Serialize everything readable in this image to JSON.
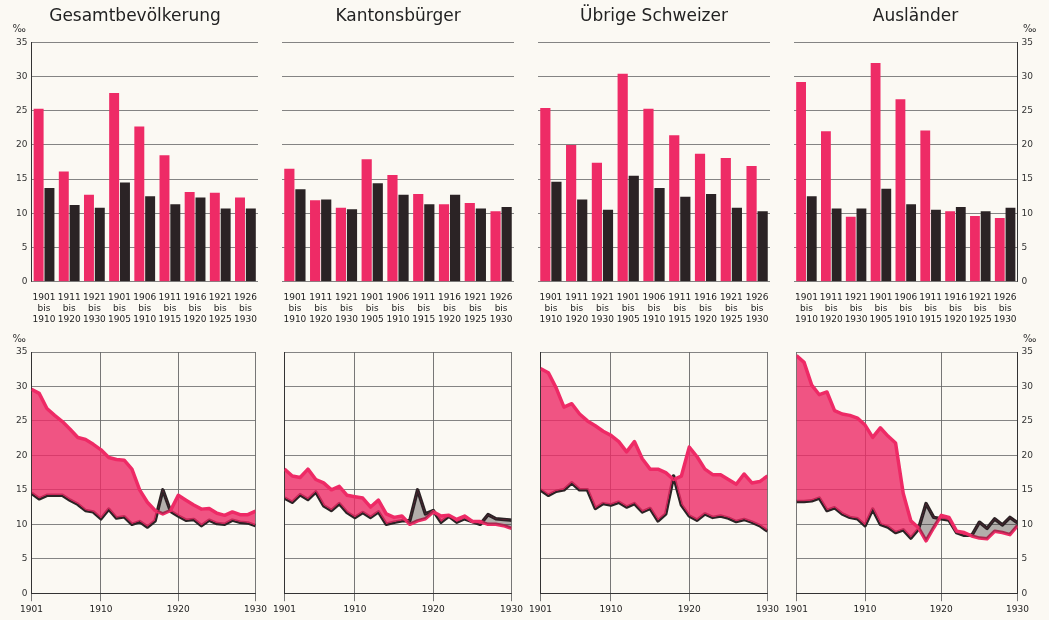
{
  "chart_data": [
    {
      "type": "bar",
      "title": "Gesamtbevölkerung",
      "ylabel": "‰",
      "categories": [
        "1901 bis 1910",
        "1911 bis 1920",
        "1921 bis 1930",
        "1901 bis 1905",
        "1906 bis 1910",
        "1911 bis 1915",
        "1916 bis 1920",
        "1921 bis 1925",
        "1926 bis 1930"
      ],
      "series": [
        {
          "color": "#ee2b66",
          "values": [
            25.3,
            16.1,
            12.7,
            27.6,
            22.7,
            18.5,
            13.1,
            13.0,
            12.3
          ]
        },
        {
          "color": "#2b2325",
          "values": [
            13.7,
            11.2,
            10.8,
            14.5,
            12.5,
            11.3,
            12.3,
            10.7,
            10.7
          ]
        }
      ],
      "ylim": [
        0,
        35
      ],
      "yticks": [
        0,
        5,
        10,
        15,
        20,
        25,
        30,
        35
      ],
      "grid": "y",
      "legend": false
    },
    {
      "type": "bar",
      "title": "Kantonsbürger",
      "categories": [
        "1901 bis 1910",
        "1911 bis 1920",
        "1921 bis 1930",
        "1901 bis 1905",
        "1906 bis 1910",
        "1911 bis 1915",
        "1916 bis 1920",
        "1921 bis 1925",
        "1926 bis 1930"
      ],
      "series": [
        {
          "color": "#ee2b66",
          "values": [
            16.5,
            11.9,
            10.8,
            17.9,
            15.6,
            12.8,
            11.3,
            11.5,
            10.3
          ]
        },
        {
          "color": "#2b2325",
          "values": [
            13.5,
            12.0,
            10.6,
            14.4,
            12.7,
            11.3,
            12.7,
            10.7,
            10.9
          ]
        }
      ],
      "ylim": [
        0,
        35
      ],
      "yticks": [
        0,
        5,
        10,
        15,
        20,
        25,
        30,
        35
      ],
      "grid": "y",
      "legend": false,
      "tick_labels": "x"
    },
    {
      "type": "bar",
      "title": "Übrige Schweizer",
      "categories": [
        "1901 bis 1910",
        "1911 bis 1920",
        "1921 bis 1930",
        "1901 bis 1905",
        "1906 bis 1910",
        "1911 bis 1915",
        "1916 bis 1920",
        "1921 bis 1925",
        "1926 bis 1930"
      ],
      "series": [
        {
          "color": "#ee2b66",
          "values": [
            25.4,
            20.0,
            17.4,
            30.4,
            25.3,
            21.4,
            18.7,
            18.1,
            16.9
          ]
        },
        {
          "color": "#2b2325",
          "values": [
            14.6,
            12.0,
            10.5,
            15.5,
            13.7,
            12.4,
            12.8,
            10.8,
            10.3
          ]
        }
      ],
      "ylim": [
        0,
        35
      ],
      "yticks": [
        0,
        5,
        10,
        15,
        20,
        25,
        30,
        35
      ],
      "grid": "y",
      "legend": false,
      "tick_labels": "x"
    },
    {
      "type": "bar",
      "title": "Ausländer",
      "ylabel": "‰",
      "categories": [
        "1901 bis 1910",
        "1911 bis 1920",
        "1921 bis 1930",
        "1901 bis 1905",
        "1906 bis 1910",
        "1911 bis 1915",
        "1916 bis 1920",
        "1921 bis 1925",
        "1926 bis 1930"
      ],
      "series": [
        {
          "color": "#ee2b66",
          "values": [
            29.2,
            22.0,
            9.5,
            32.0,
            26.7,
            22.1,
            10.3,
            9.6,
            9.3
          ]
        },
        {
          "color": "#2b2325",
          "values": [
            12.5,
            10.7,
            10.7,
            13.6,
            11.3,
            10.5,
            10.9,
            10.3,
            10.8
          ]
        }
      ],
      "ylim": [
        0,
        35
      ],
      "yticks": [
        0,
        5,
        10,
        15,
        20,
        25,
        30,
        35
      ],
      "grid": "y",
      "legend": false
    },
    {
      "type": "line",
      "ylabel": "‰",
      "x": [
        1901,
        1902,
        1903,
        1904,
        1905,
        1906,
        1907,
        1908,
        1909,
        1910,
        1911,
        1912,
        1913,
        1914,
        1915,
        1916,
        1917,
        1918,
        1919,
        1920,
        1921,
        1922,
        1923,
        1924,
        1925,
        1926,
        1927,
        1928,
        1929,
        1930
      ],
      "series": [
        {
          "color": "#ee2b66",
          "values": [
            29.6,
            29.0,
            26.8,
            25.8,
            24.9,
            23.8,
            22.6,
            22.3,
            21.6,
            20.8,
            19.7,
            19.4,
            19.3,
            18.0,
            15.0,
            13.2,
            12.0,
            11.5,
            12.0,
            14.2,
            13.5,
            12.8,
            12.2,
            12.3,
            11.6,
            11.3,
            11.8,
            11.4,
            11.4,
            11.9
          ],
          "upper": [
            29.6,
            29.0,
            26.8,
            25.8,
            24.9,
            23.8,
            22.6,
            22.3,
            21.6,
            20.8,
            19.7,
            19.4,
            19.3,
            18.0,
            15.0,
            13.2,
            12.0,
            11.5,
            12.0,
            14.2,
            13.5,
            12.8,
            12.2,
            12.3,
            11.6,
            11.3,
            11.8,
            11.4,
            11.4,
            11.9
          ],
          "lower": [
            14.5,
            13.7,
            14.2,
            14.2,
            14.2,
            13.5,
            12.9,
            12.0,
            11.8,
            10.8,
            12.2,
            10.9,
            11.1,
            10.0,
            10.4,
            9.6,
            10.5,
            15.0,
            11.9,
            11.2,
            10.6,
            10.7,
            9.8,
            10.6,
            10.1,
            10.0,
            10.6,
            10.3,
            10.2,
            9.8
          ]
        },
        {
          "color": "#2b2325",
          "values": [
            14.5,
            13.7,
            14.2,
            14.2,
            14.2,
            13.5,
            12.9,
            12.0,
            11.8,
            10.8,
            12.2,
            10.9,
            11.1,
            10.0,
            10.4,
            9.6,
            10.5,
            15.0,
            11.9,
            11.2,
            10.6,
            10.7,
            9.8,
            10.6,
            10.1,
            10.0,
            10.6,
            10.3,
            10.2,
            9.8
          ]
        }
      ],
      "xlim": [
        1901,
        1930
      ],
      "xticks": [
        1901,
        1910,
        1920,
        1930
      ],
      "ylim": [
        0,
        35
      ],
      "yticks": [
        0,
        5,
        10,
        15,
        20,
        25,
        30,
        35
      ],
      "grid": true,
      "legend": false,
      "marker": "none"
    },
    {
      "type": "line",
      "x": [
        1901,
        1902,
        1903,
        1904,
        1905,
        1906,
        1907,
        1908,
        1909,
        1910,
        1911,
        1912,
        1913,
        1914,
        1915,
        1916,
        1917,
        1918,
        1919,
        1920,
        1921,
        1922,
        1923,
        1924,
        1925,
        1926,
        1927,
        1928,
        1929,
        1930
      ],
      "series": [
        {
          "color": "#ee2b66",
          "values": [
            18.0,
            17.0,
            16.8,
            18.0,
            16.5,
            16.0,
            15.0,
            15.5,
            14.2,
            14.0,
            13.8,
            12.5,
            13.5,
            11.5,
            11.0,
            11.2,
            10.0,
            10.5,
            10.8,
            11.8,
            11.2,
            11.3,
            10.7,
            11.2,
            10.4,
            10.4,
            10.0,
            10.0,
            9.8,
            9.4
          ],
          "upper": [
            18.0,
            17.0,
            16.8,
            18.0,
            16.5,
            16.0,
            15.0,
            15.5,
            14.2,
            14.0,
            13.8,
            12.5,
            13.5,
            11.5,
            11.0,
            11.2,
            10.0,
            10.5,
            10.8,
            11.8,
            11.2,
            11.3,
            10.7,
            11.2,
            10.4,
            10.4,
            10.0,
            10.0,
            9.8,
            9.4
          ],
          "lower": [
            13.8,
            13.2,
            14.3,
            13.6,
            14.7,
            12.7,
            12.0,
            13.0,
            11.7,
            11.0,
            11.7,
            11.0,
            11.8,
            10.0,
            10.3,
            10.5,
            10.5,
            15.0,
            11.5,
            12.0,
            10.3,
            11.2,
            10.3,
            10.8,
            10.4,
            10.0,
            11.4,
            10.8,
            10.7,
            10.6
          ]
        },
        {
          "color": "#2b2325",
          "values": [
            13.8,
            13.2,
            14.3,
            13.6,
            14.7,
            12.7,
            12.0,
            13.0,
            11.7,
            11.0,
            11.7,
            11.0,
            11.8,
            10.0,
            10.3,
            10.5,
            10.5,
            15.0,
            11.5,
            12.0,
            10.3,
            11.2,
            10.3,
            10.8,
            10.4,
            10.0,
            11.4,
            10.8,
            10.7,
            10.6
          ]
        }
      ],
      "xlim": [
        1901,
        1930
      ],
      "xticks": [
        1901,
        1910,
        1920,
        1930
      ],
      "ylim": [
        0,
        35
      ],
      "yticks": [
        0,
        5,
        10,
        15,
        20,
        25,
        30,
        35
      ],
      "grid": true,
      "legend": false,
      "marker": "none",
      "tick_labels": "x"
    },
    {
      "type": "line",
      "x": [
        1901,
        1902,
        1903,
        1904,
        1905,
        1906,
        1907,
        1908,
        1909,
        1910,
        1911,
        1912,
        1913,
        1914,
        1915,
        1916,
        1917,
        1918,
        1919,
        1920,
        1921,
        1922,
        1923,
        1924,
        1925,
        1926,
        1927,
        1928,
        1929,
        1930
      ],
      "series": [
        {
          "color": "#ee2b66",
          "values": [
            32.6,
            32.0,
            29.8,
            27.0,
            27.5,
            26.0,
            25.0,
            24.3,
            23.5,
            22.9,
            22.0,
            20.5,
            22.0,
            19.5,
            18.0,
            18.0,
            17.5,
            16.5,
            17.0,
            21.2,
            19.8,
            18.0,
            17.2,
            17.2,
            16.5,
            15.8,
            17.3,
            16.0,
            16.2,
            17.0
          ],
          "upper": [
            32.6,
            32.0,
            29.8,
            27.0,
            27.5,
            26.0,
            25.0,
            24.3,
            23.5,
            22.9,
            22.0,
            20.5,
            22.0,
            19.5,
            18.0,
            18.0,
            17.5,
            16.5,
            17.0,
            21.2,
            19.8,
            18.0,
            17.2,
            17.2,
            16.5,
            15.8,
            17.3,
            16.0,
            16.2,
            17.0
          ],
          "lower": [
            15.0,
            14.2,
            14.8,
            15.0,
            16.0,
            15.0,
            15.0,
            12.3,
            13.0,
            12.8,
            13.2,
            12.5,
            13.0,
            11.8,
            12.3,
            10.5,
            11.5,
            17.0,
            12.8,
            11.2,
            10.6,
            11.5,
            11.0,
            11.2,
            10.9,
            10.4,
            10.7,
            10.3,
            9.8,
            9.0
          ]
        },
        {
          "color": "#2b2325",
          "values": [
            15.0,
            14.2,
            14.8,
            15.0,
            16.0,
            15.0,
            15.0,
            12.3,
            13.0,
            12.8,
            13.2,
            12.5,
            13.0,
            11.8,
            12.3,
            10.5,
            11.5,
            17.0,
            12.8,
            11.2,
            10.6,
            11.5,
            11.0,
            11.2,
            10.9,
            10.4,
            10.7,
            10.3,
            9.8,
            9.0
          ]
        }
      ],
      "xlim": [
        1901,
        1930
      ],
      "xticks": [
        1901,
        1910,
        1920,
        1930
      ],
      "ylim": [
        0,
        35
      ],
      "yticks": [
        0,
        5,
        10,
        15,
        20,
        25,
        30,
        35
      ],
      "grid": true,
      "legend": false,
      "marker": "none",
      "tick_labels": "x"
    },
    {
      "type": "line",
      "ylabel": "‰",
      "x": [
        1901,
        1902,
        1903,
        1904,
        1905,
        1906,
        1907,
        1908,
        1909,
        1910,
        1911,
        1912,
        1913,
        1914,
        1915,
        1916,
        1917,
        1918,
        1919,
        1920,
        1921,
        1922,
        1923,
        1924,
        1925,
        1926,
        1927,
        1928,
        1929,
        1930
      ],
      "series": [
        {
          "color": "#ee2b66",
          "values": [
            34.5,
            33.5,
            30.2,
            28.8,
            29.2,
            26.5,
            26.0,
            25.8,
            25.4,
            24.4,
            22.6,
            24.0,
            22.8,
            21.8,
            14.5,
            10.5,
            9.5,
            7.6,
            9.5,
            11.3,
            11.0,
            9.0,
            8.8,
            8.3,
            8.0,
            7.9,
            9.0,
            8.8,
            8.5,
            9.8
          ],
          "upper": [
            34.5,
            33.5,
            30.2,
            28.8,
            29.2,
            26.5,
            26.0,
            25.8,
            25.4,
            24.4,
            22.6,
            24.0,
            22.8,
            21.8,
            14.5,
            10.5,
            9.5,
            7.6,
            9.5,
            11.3,
            11.0,
            9.0,
            8.8,
            8.3,
            8.0,
            7.9,
            9.0,
            8.8,
            8.5,
            9.8
          ],
          "lower": [
            13.3,
            13.3,
            13.4,
            13.8,
            12.0,
            12.4,
            11.5,
            11.0,
            10.8,
            9.8,
            12.2,
            10.0,
            9.6,
            8.8,
            9.2,
            8.0,
            9.3,
            13.0,
            11.0,
            10.8,
            10.6,
            8.8,
            8.4,
            8.4,
            10.3,
            9.4,
            10.8,
            9.9,
            11.0,
            10.2
          ]
        },
        {
          "color": "#2b2325",
          "values": [
            13.3,
            13.3,
            13.4,
            13.8,
            12.0,
            12.4,
            11.5,
            11.0,
            10.8,
            9.8,
            12.2,
            10.0,
            9.6,
            8.8,
            9.2,
            8.0,
            9.3,
            13.0,
            11.0,
            10.8,
            10.6,
            8.8,
            8.4,
            8.4,
            10.3,
            9.4,
            10.8,
            9.9,
            11.0,
            10.2
          ]
        }
      ],
      "xlim": [
        1901,
        1930
      ],
      "xticks": [
        1901,
        1910,
        1920,
        1930
      ],
      "ylim": [
        0,
        35
      ],
      "yticks": [
        0,
        5,
        10,
        15,
        20,
        25,
        30,
        35
      ],
      "grid": true,
      "legend": false,
      "marker": "none"
    }
  ]
}
